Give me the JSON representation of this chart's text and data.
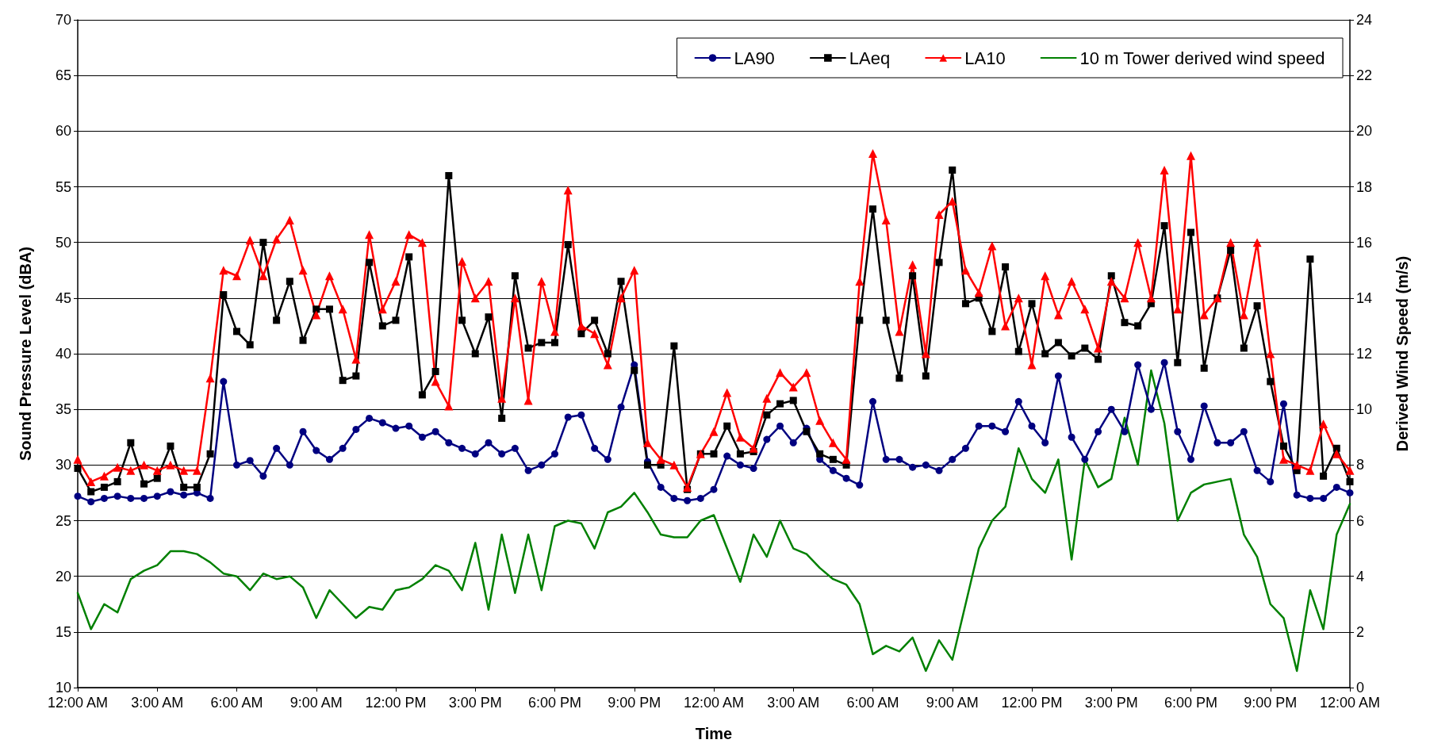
{
  "chart_data": {
    "type": "line",
    "xlabel": "Time",
    "ylabel": "Sound Pressure Level (dBA)",
    "y2label": "Derived Wind Speed (m/s)",
    "x": [
      "--01-01T00:00",
      "--01-01T00:30",
      "--01-01T01:00",
      "--01-01T01:30",
      "--01-01T02:00",
      "--01-01T02:30",
      "--01-01T03:00",
      "--01-01T03:30",
      "--01-01T04:00",
      "--01-01T04:30",
      "--01-01T05:00",
      "--01-01T05:30",
      "--01-01T06:00",
      "--01-01T06:30",
      "--01-01T07:00",
      "--01-01T07:30",
      "--01-01T08:00",
      "--01-01T08:30",
      "--01-01T09:00",
      "--01-01T09:30",
      "--01-01T10:00",
      "--01-01T10:30",
      "--01-01T11:00",
      "--01-01T11:30",
      "--01-01T12:00",
      "--01-01T12:30",
      "--01-01T13:00",
      "--01-01T13:30",
      "--01-01T14:00",
      "--01-01T14:30",
      "--01-01T15:00",
      "--01-01T15:30",
      "--01-01T16:00",
      "--01-01T16:30",
      "--01-01T17:00",
      "--01-01T17:30",
      "--01-01T18:00",
      "--01-01T18:30",
      "--01-01T19:00",
      "--01-01T19:30",
      "--01-01T20:00",
      "--01-01T20:30",
      "--01-01T21:00",
      "--01-01T21:30",
      "--01-01T22:00",
      "--01-01T22:30",
      "--01-01T23:00",
      "--01-01T23:30",
      "--01-02T00:00",
      "--01-02T00:30",
      "--01-02T01:00",
      "--01-02T01:30",
      "--01-02T02:00",
      "--01-02T02:30",
      "--01-02T03:00",
      "--01-02T03:30",
      "--01-02T04:00",
      "--01-02T04:30",
      "--01-02T05:00",
      "--01-02T05:30",
      "--01-02T06:00",
      "--01-02T06:30",
      "--01-02T07:00",
      "--01-02T07:30",
      "--01-02T08:00",
      "--01-02T08:30",
      "--01-02T09:00",
      "--01-02T09:30",
      "--01-02T10:00",
      "--01-02T10:30",
      "--01-02T11:00",
      "--01-02T11:30",
      "--01-02T12:00",
      "--01-02T12:30",
      "--01-02T13:00",
      "--01-02T13:30",
      "--01-02T14:00",
      "--01-02T14:30",
      "--01-02T15:00",
      "--01-02T15:30",
      "--01-02T16:00",
      "--01-02T16:30",
      "--01-02T17:00",
      "--01-02T17:30",
      "--01-02T18:00",
      "--01-02T18:30",
      "--01-02T19:00",
      "--01-02T19:30",
      "--01-02T20:00",
      "--01-02T20:30",
      "--01-02T21:00",
      "--01-02T21:30",
      "--01-02T22:00",
      "--01-02T22:30",
      "--01-02T23:00",
      "--01-02T23:30",
      "--01-03T00:00"
    ],
    "series": [
      {
        "name": "LA90",
        "color": "#000080",
        "marker": "circle",
        "values": [
          27.2,
          26.7,
          27.0,
          27.2,
          27.0,
          27.0,
          27.2,
          27.6,
          27.3,
          27.5,
          27.0,
          37.5,
          30.0,
          30.4,
          29.0,
          31.5,
          30.0,
          33.0,
          31.3,
          30.5,
          31.5,
          33.2,
          34.2,
          33.8,
          33.3,
          33.5,
          32.5,
          33.0,
          32.0,
          31.5,
          31.0,
          32.0,
          31.0,
          31.5,
          29.5,
          30.0,
          31.0,
          34.3,
          34.5,
          31.5,
          30.5,
          35.2,
          39.0,
          30.3,
          28.0,
          27.0,
          26.8,
          27.0,
          27.8,
          30.8,
          30.0,
          29.7,
          32.3,
          33.5,
          32.0,
          33.3,
          30.5,
          29.5,
          28.8,
          28.2,
          35.7,
          30.5,
          30.5,
          29.8,
          30.0,
          29.5,
          30.5,
          31.5,
          33.5,
          33.5,
          33.0,
          35.7,
          33.5,
          32.0,
          38.0,
          32.5,
          30.5,
          33.0,
          35.0,
          33.0,
          39.0,
          35.0,
          39.2,
          33.0,
          30.5,
          35.3,
          32.0,
          32.0,
          33.0,
          29.5,
          28.5,
          35.5,
          27.3,
          27.0,
          27.0,
          28.0,
          27.5
        ]
      },
      {
        "name": "LAeq",
        "color": "#000000",
        "marker": "square",
        "values": [
          29.7,
          27.6,
          28.0,
          28.5,
          32.0,
          28.3,
          28.8,
          31.7,
          28.0,
          28.0,
          31.0,
          45.3,
          42.0,
          40.8,
          50.0,
          43.0,
          46.5,
          41.2,
          44.0,
          44.0,
          37.6,
          38.0,
          48.2,
          42.5,
          43.0,
          48.7,
          36.3,
          38.4,
          56.0,
          43.0,
          40.0,
          43.3,
          34.2,
          47.0,
          40.5,
          41.0,
          41.0,
          49.8,
          41.8,
          43.0,
          40.0,
          46.5,
          38.5,
          30.0,
          30.0,
          40.7,
          27.8,
          31.0,
          31.0,
          33.5,
          31.0,
          31.2,
          34.5,
          35.5,
          35.8,
          33.0,
          31.0,
          30.5,
          30.0,
          43.0,
          53.0,
          43.0,
          37.8,
          47.0,
          38.0,
          48.2,
          56.5,
          44.5,
          45.0,
          42.0,
          47.8,
          40.2,
          44.5,
          40.0,
          41.0,
          39.8,
          40.5,
          39.5,
          47.0,
          42.8,
          42.5,
          44.5,
          51.5,
          39.2,
          50.9,
          38.7,
          45.0,
          49.3,
          40.5,
          44.3,
          37.5,
          31.7,
          29.5,
          48.5,
          29.0,
          31.5,
          28.5
        ]
      },
      {
        "name": "LA10",
        "color": "#ff0000",
        "marker": "triangle",
        "values": [
          30.5,
          28.5,
          29.0,
          29.8,
          29.5,
          30.0,
          29.5,
          30.0,
          29.5,
          29.5,
          37.8,
          47.5,
          47.0,
          50.2,
          47.0,
          50.3,
          52.0,
          47.5,
          43.5,
          47.0,
          44.0,
          39.5,
          50.7,
          44.0,
          46.5,
          50.7,
          50.0,
          37.5,
          35.3,
          48.3,
          45.0,
          46.5,
          36.0,
          45.0,
          35.8,
          46.5,
          42.0,
          54.7,
          42.5,
          41.8,
          39.0,
          45.0,
          47.5,
          32.0,
          30.5,
          30.0,
          28.0,
          31.0,
          33.0,
          36.5,
          32.5,
          31.5,
          36.0,
          38.3,
          37.0,
          38.3,
          34.0,
          32.0,
          30.5,
          46.5,
          58.0,
          52.0,
          42.0,
          48.0,
          40.0,
          52.5,
          53.7,
          47.5,
          45.5,
          49.7,
          42.5,
          45.0,
          39.0,
          47.0,
          43.5,
          46.5,
          44.0,
          40.5,
          46.5,
          45.0,
          50.0,
          45.0,
          56.5,
          44.0,
          57.8,
          43.5,
          45.0,
          50.0,
          43.5,
          50.0,
          40.0,
          30.5,
          30.0,
          29.5,
          33.7,
          31.0,
          29.5
        ]
      },
      {
        "name": "10 m Tower derived wind speed",
        "color": "#008000",
        "marker": "none",
        "axis": "y2",
        "values": [
          3.4,
          2.1,
          3.0,
          2.7,
          3.9,
          4.2,
          4.4,
          4.9,
          4.9,
          4.8,
          4.5,
          4.1,
          4.0,
          3.5,
          4.1,
          3.9,
          4.0,
          3.6,
          2.5,
          3.5,
          3.0,
          2.5,
          2.9,
          2.8,
          3.5,
          3.6,
          3.9,
          4.4,
          4.2,
          3.5,
          5.2,
          2.8,
          5.5,
          3.4,
          5.5,
          3.5,
          5.8,
          6.0,
          5.9,
          5.0,
          6.3,
          6.5,
          7.0,
          6.3,
          5.5,
          5.4,
          5.4,
          6.0,
          6.2,
          5.0,
          3.8,
          5.5,
          4.7,
          6.0,
          5.0,
          4.8,
          4.3,
          3.9,
          3.7,
          3.0,
          1.2,
          1.5,
          1.3,
          1.8,
          0.6,
          1.7,
          1.0,
          3.0,
          5.0,
          6.0,
          6.5,
          8.6,
          7.5,
          7.0,
          8.2,
          4.6,
          8.2,
          7.2,
          7.5,
          9.7,
          8.0,
          11.4,
          9.5,
          6.0,
          7.0,
          7.3,
          7.4,
          7.5,
          5.5,
          4.7,
          3.0,
          2.5,
          0.6,
          3.5,
          2.1,
          5.5,
          6.6
        ]
      }
    ],
    "xlim": [
      "--01-01T00:00",
      "--01-03T00:00"
    ],
    "xticks": [
      {
        "value": "--01-01T00:00",
        "label": "12:00 AM"
      },
      {
        "value": "--01-01T03:00",
        "label": "3:00 AM"
      },
      {
        "value": "--01-01T06:00",
        "label": "6:00 AM"
      },
      {
        "value": "--01-01T09:00",
        "label": "9:00 AM"
      },
      {
        "value": "--01-01T12:00",
        "label": "12:00 PM"
      },
      {
        "value": "--01-01T15:00",
        "label": "3:00 PM"
      },
      {
        "value": "--01-01T18:00",
        "label": "6:00 PM"
      },
      {
        "value": "--01-01T21:00",
        "label": "9:00 PM"
      },
      {
        "value": "--01-02T00:00",
        "label": "12:00 AM"
      },
      {
        "value": "--01-02T03:00",
        "label": "3:00 AM"
      },
      {
        "value": "--01-02T06:00",
        "label": "6:00 AM"
      },
      {
        "value": "--01-02T09:00",
        "label": "9:00 AM"
      },
      {
        "value": "--01-02T12:00",
        "label": "12:00 PM"
      },
      {
        "value": "--01-02T15:00",
        "label": "3:00 PM"
      },
      {
        "value": "--01-02T18:00",
        "label": "6:00 PM"
      },
      {
        "value": "--01-02T21:00",
        "label": "9:00 PM"
      },
      {
        "value": "--01-03T00:00",
        "label": "12:00 AM"
      }
    ],
    "ylim": [
      10,
      70
    ],
    "yticks": [
      10,
      15,
      20,
      25,
      30,
      35,
      40,
      45,
      50,
      55,
      60,
      65,
      70
    ],
    "y2lim": [
      0,
      24
    ],
    "y2ticks": [
      0,
      2,
      4,
      6,
      8,
      10,
      12,
      14,
      16,
      18,
      20,
      22,
      24
    ],
    "grid": "y",
    "legend": "top right",
    "line_style": "solid"
  }
}
